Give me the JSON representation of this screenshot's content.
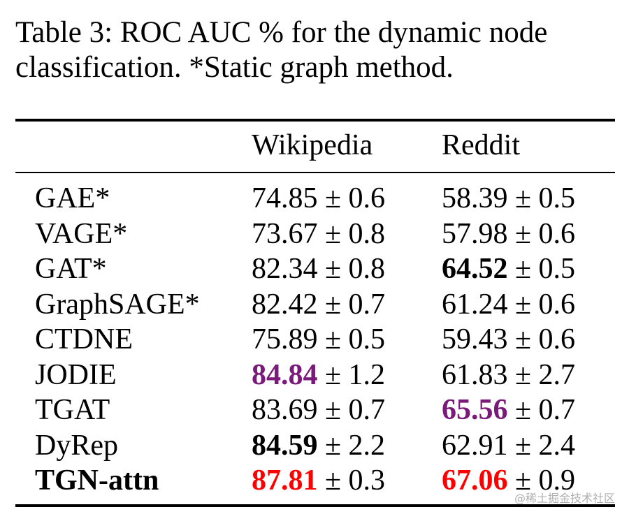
{
  "caption": {
    "line1": "Table 3: ROC AUC % for the dynamic node",
    "line2": "classification. *Static graph method."
  },
  "colors": {
    "best": "#ff0000",
    "second": "#7a1a7a",
    "text": "#000000"
  },
  "table": {
    "headers": [
      "",
      "Wikipedia",
      "Reddit"
    ],
    "rows": [
      {
        "method": "GAE*",
        "method_bold": false,
        "wiki": {
          "mean": "74.85",
          "pm": " ± 0.6",
          "style": "normal"
        },
        "reddit": {
          "mean": "58.39",
          "pm": " ± 0.5",
          "style": "normal"
        }
      },
      {
        "method": "VAGE*",
        "method_bold": false,
        "wiki": {
          "mean": "73.67",
          "pm": " ± 0.8",
          "style": "normal"
        },
        "reddit": {
          "mean": "57.98",
          "pm": " ± 0.6",
          "style": "normal"
        }
      },
      {
        "method": "GAT*",
        "method_bold": false,
        "wiki": {
          "mean": "82.34",
          "pm": " ± 0.8",
          "style": "normal"
        },
        "reddit": {
          "mean": "64.52",
          "pm": " ± 0.5",
          "style": "bold"
        }
      },
      {
        "method": "GraphSAGE*",
        "method_bold": false,
        "wiki": {
          "mean": "82.42",
          "pm": " ± 0.7",
          "style": "normal"
        },
        "reddit": {
          "mean": "61.24",
          "pm": " ± 0.6",
          "style": "normal"
        }
      },
      {
        "method": "CTDNE",
        "method_bold": false,
        "wiki": {
          "mean": "75.89",
          "pm": " ± 0.5",
          "style": "normal"
        },
        "reddit": {
          "mean": "59.43",
          "pm": " ± 0.6",
          "style": "normal"
        }
      },
      {
        "method": "JODIE",
        "method_bold": false,
        "wiki": {
          "mean": "84.84",
          "pm": " ± 1.2",
          "style": "second"
        },
        "reddit": {
          "mean": "61.83",
          "pm": " ± 2.7",
          "style": "normal"
        }
      },
      {
        "method": "TGAT",
        "method_bold": false,
        "wiki": {
          "mean": "83.69",
          "pm": " ± 0.7",
          "style": "normal"
        },
        "reddit": {
          "mean": "65.56",
          "pm": " ± 0.7",
          "style": "second"
        }
      },
      {
        "method": "DyRep",
        "method_bold": false,
        "wiki": {
          "mean": "84.59",
          "pm": " ± 2.2",
          "style": "bold"
        },
        "reddit": {
          "mean": "62.91",
          "pm": " ± 2.4",
          "style": "normal"
        }
      },
      {
        "method": "TGN-attn",
        "method_bold": true,
        "wiki": {
          "mean": "87.81",
          "pm": " ± 0.3",
          "style": "best"
        },
        "reddit": {
          "mean": "67.06",
          "pm": " ± 0.9",
          "style": "best"
        }
      }
    ]
  },
  "watermark": "@稀土掘金技术社区"
}
